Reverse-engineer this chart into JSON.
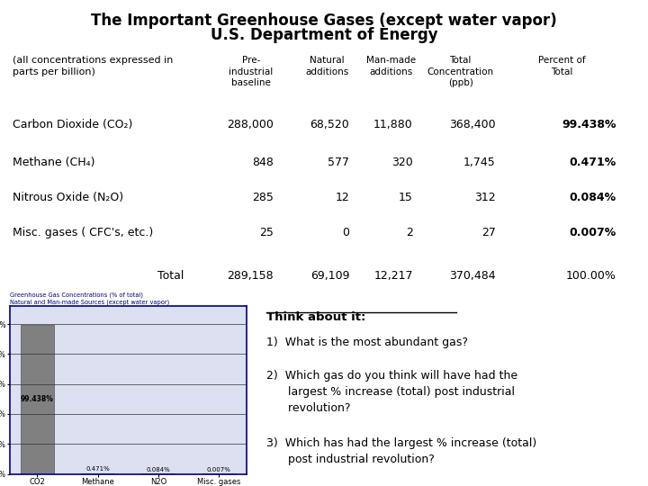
{
  "title_line1": "The Important Greenhouse Gases (except water vapor)",
  "title_line2": "U.S. Department of Energy",
  "bg_color": "#ffffff",
  "header_row": [
    "Pre-\nindustrial\nbaseline",
    "Natural\nadditions",
    "Man-made\nadditions",
    "Total\nConcentration\n(ppb)",
    "Percent of\nTotal"
  ],
  "row_labels": [
    "Carbon Dioxide (CO₂)",
    "Methane (CH₄)",
    "Nitrous Oxide (N₂O)",
    "Misc. gases ( CFC's, etc.)",
    "Total"
  ],
  "table_data": [
    [
      "288,000",
      "68,520",
      "11,880",
      "368,400",
      "99.438%"
    ],
    [
      "848",
      "577",
      "320",
      "1,745",
      "0.471%"
    ],
    [
      "285",
      "12",
      "15",
      "312",
      "0.084%"
    ],
    [
      "25",
      "0",
      "2",
      "27",
      "0.007%"
    ],
    [
      "289,158",
      "69,109",
      "12,217",
      "370,484",
      "100.00%"
    ]
  ],
  "bold_pct_rows": [
    0,
    1,
    2,
    3
  ],
  "col_label_header": "(all concentrations expressed in\nparts per billion)",
  "chart_title_line1": "Greenhouse Gas Concentrations (% of total)",
  "chart_title_line2": "Natural and Man-made Sources (except water vapor)",
  "bar_categories": [
    "CO2",
    "Methane",
    "N2O",
    "Misc. gases"
  ],
  "bar_values": [
    99.438,
    0.471,
    0.084,
    0.007
  ],
  "bar_labels": [
    "99.438%",
    "0.471%",
    "0.084%",
    "0.007%"
  ],
  "bar_color_co2": "#808080",
  "bar_color_others": "#aaaadd",
  "chart_border_color": "#000080",
  "think_title": "Think about it:",
  "think_q1": "1)  What is the most abundant gas?",
  "think_q2": "2)  Which gas do you think will have had the\n      largest % increase (total) post industrial\n      revolution?",
  "think_q3": "3)  Which has had the largest % increase (total)\n      post industrial revolution?"
}
